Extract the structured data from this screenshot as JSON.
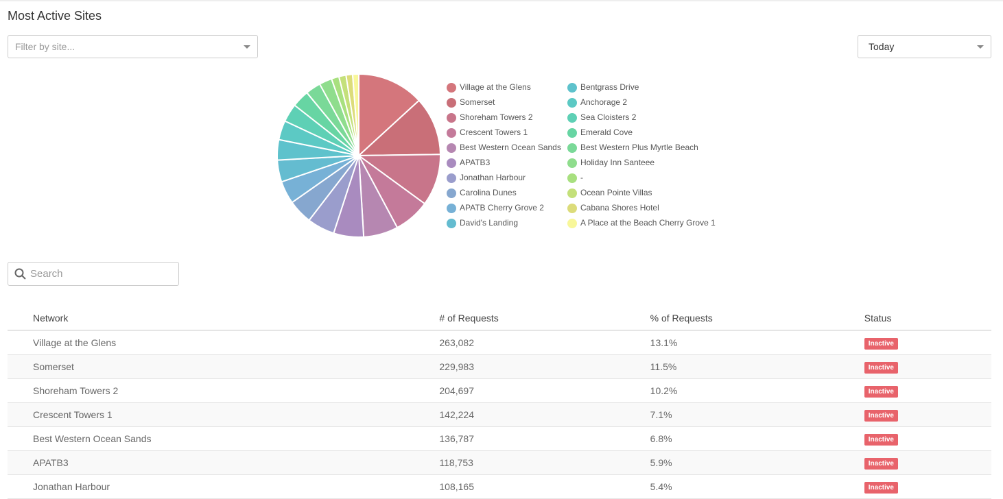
{
  "header": {
    "title": "Most Active Sites"
  },
  "filters": {
    "site_placeholder": "Filter by site...",
    "period": "Today"
  },
  "search": {
    "placeholder": "Search"
  },
  "chart_data": {
    "type": "pie",
    "categories": [
      "Village at the Glens",
      "Somerset",
      "Shoreham Towers 2",
      "Crescent Towers 1",
      "Best Western Ocean Sands",
      "APATB3",
      "Jonathan Harbour",
      "Carolina Dunes",
      "APATB Cherry Grove 2",
      "David's Landing",
      "Bentgrass Drive",
      "Anchorage 2",
      "Sea Cloisters 2",
      "Emerald Cove",
      "Best Western Plus Myrtle Beach",
      "Holiday Inn Santeee",
      "-",
      "Ocean Pointe Villas",
      "Cabana Shores Hotel",
      "A Place at the Beach Cherry Grove 1"
    ],
    "values": [
      13.1,
      11.5,
      10.2,
      7.1,
      6.8,
      5.9,
      5.4,
      4.8,
      4.5,
      4.3,
      4.0,
      3.8,
      3.6,
      3.4,
      3.0,
      2.5,
      1.5,
      1.4,
      1.3,
      1.2
    ],
    "colors": [
      "#d4767c",
      "#c96f78",
      "#c8758a",
      "#c47a9a",
      "#b687b1",
      "#a98bbf",
      "#9a9dcc",
      "#86a7cf",
      "#77b1d6",
      "#64bcd0",
      "#5ec2cc",
      "#5cc9c4",
      "#5ed0b5",
      "#67d5a3",
      "#7ad998",
      "#8fdd8d",
      "#a8e07f",
      "#c4e07a",
      "#dcdc7a",
      "#f8f79a"
    ]
  },
  "table": {
    "columns": [
      "Network",
      "# of Requests",
      "% of Requests",
      "Status"
    ],
    "rows": [
      [
        "Village at the Glens",
        "263,082",
        "13.1%",
        "Inactive"
      ],
      [
        "Somerset",
        "229,983",
        "11.5%",
        "Inactive"
      ],
      [
        "Shoreham Towers 2",
        "204,697",
        "10.2%",
        "Inactive"
      ],
      [
        "Crescent Towers 1",
        "142,224",
        "7.1%",
        "Inactive"
      ],
      [
        "Best Western Ocean Sands",
        "136,787",
        "6.8%",
        "Inactive"
      ],
      [
        "APATB3",
        "118,753",
        "5.9%",
        "Inactive"
      ],
      [
        "Jonathan Harbour",
        "108,165",
        "5.4%",
        "Inactive"
      ]
    ]
  }
}
